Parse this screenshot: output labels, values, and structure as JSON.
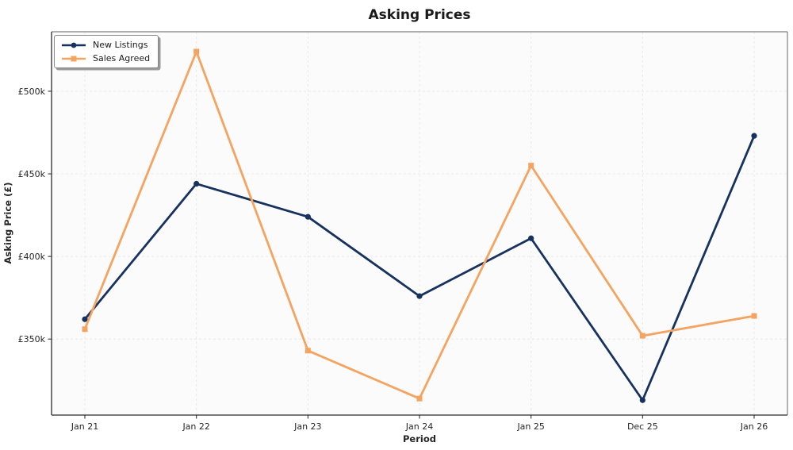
{
  "chart_data": {
    "type": "line",
    "title": "Asking Prices",
    "xlabel": "Period",
    "ylabel": "Asking Price (£)",
    "categories": [
      "Jan 21",
      "Jan 22",
      "Jan 23",
      "Jan 24",
      "Jan 25",
      "Dec 25",
      "Jan 26"
    ],
    "series": [
      {
        "name": "New Listings",
        "color": "#17325e",
        "marker": "circle",
        "values": [
          362,
          444,
          424,
          376,
          411,
          313,
          473
        ]
      },
      {
        "name": "Sales Agreed",
        "color": "#f4a460",
        "marker": "square",
        "values": [
          356,
          524,
          343,
          314,
          455,
          352,
          364
        ]
      }
    ],
    "yticks": [
      {
        "value": 350,
        "label": "£350k"
      },
      {
        "value": 400,
        "label": "£400k"
      },
      {
        "value": 450,
        "label": "£450k"
      },
      {
        "value": 500,
        "label": "£500k"
      }
    ],
    "ylim": [
      304,
      536
    ],
    "values_scale": "thousands of £",
    "grid": true,
    "legend_position": "upper left"
  }
}
